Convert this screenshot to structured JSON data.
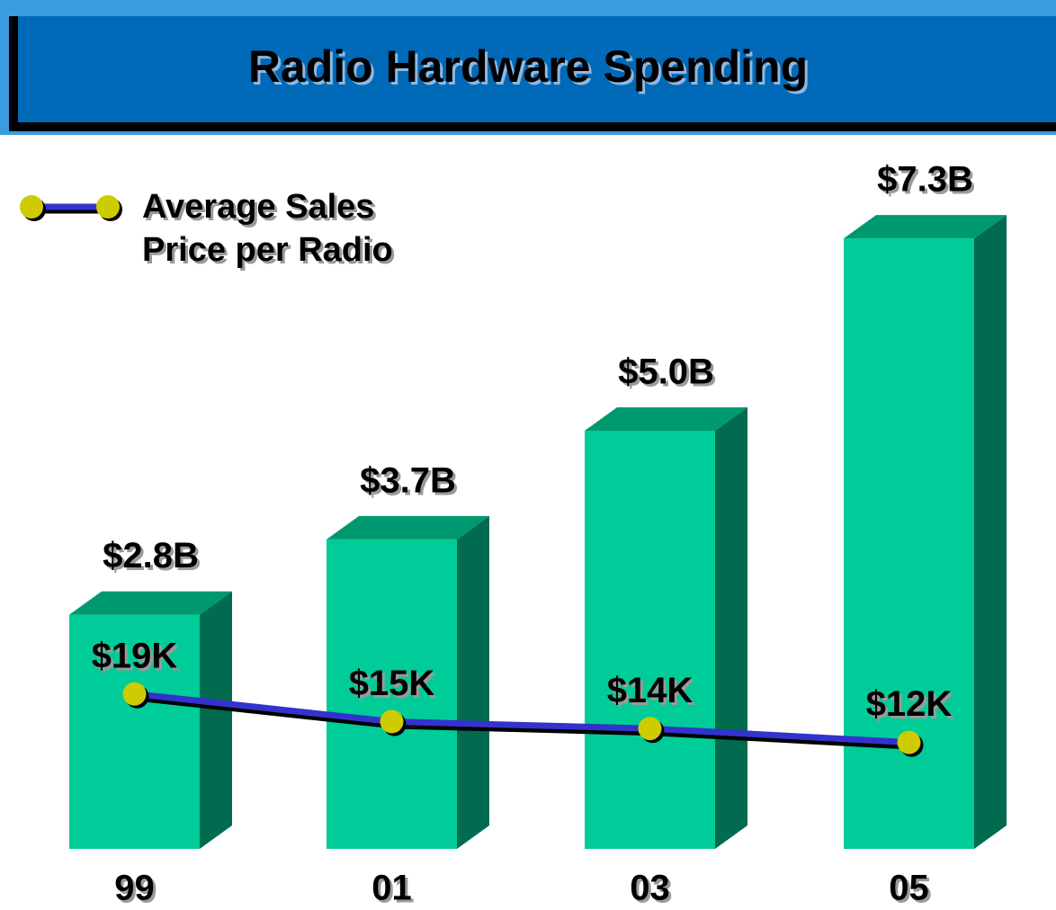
{
  "chart_data": {
    "type": "combo",
    "title": "Radio Hardware Spending",
    "categories": [
      "99",
      "01",
      "03",
      "05"
    ],
    "series": [
      {
        "type": "bar",
        "color": "#00cc99",
        "top_color": "#00996f",
        "side_color": "#006b4e",
        "values": [
          2.8,
          3.7,
          5.0,
          7.3
        ],
        "value_labels": [
          "$2.8B",
          "$3.7B",
          "$5.0B",
          "$7.3B"
        ]
      },
      {
        "type": "line",
        "name": "Average Sales Price per Radio",
        "axis": "y2",
        "color": "#3333cc",
        "marker_color": "#cccc00",
        "values": [
          19,
          15,
          14,
          12
        ],
        "value_labels": [
          "$19K",
          "$15K",
          "$14K",
          "$12K"
        ]
      }
    ]
  }
}
